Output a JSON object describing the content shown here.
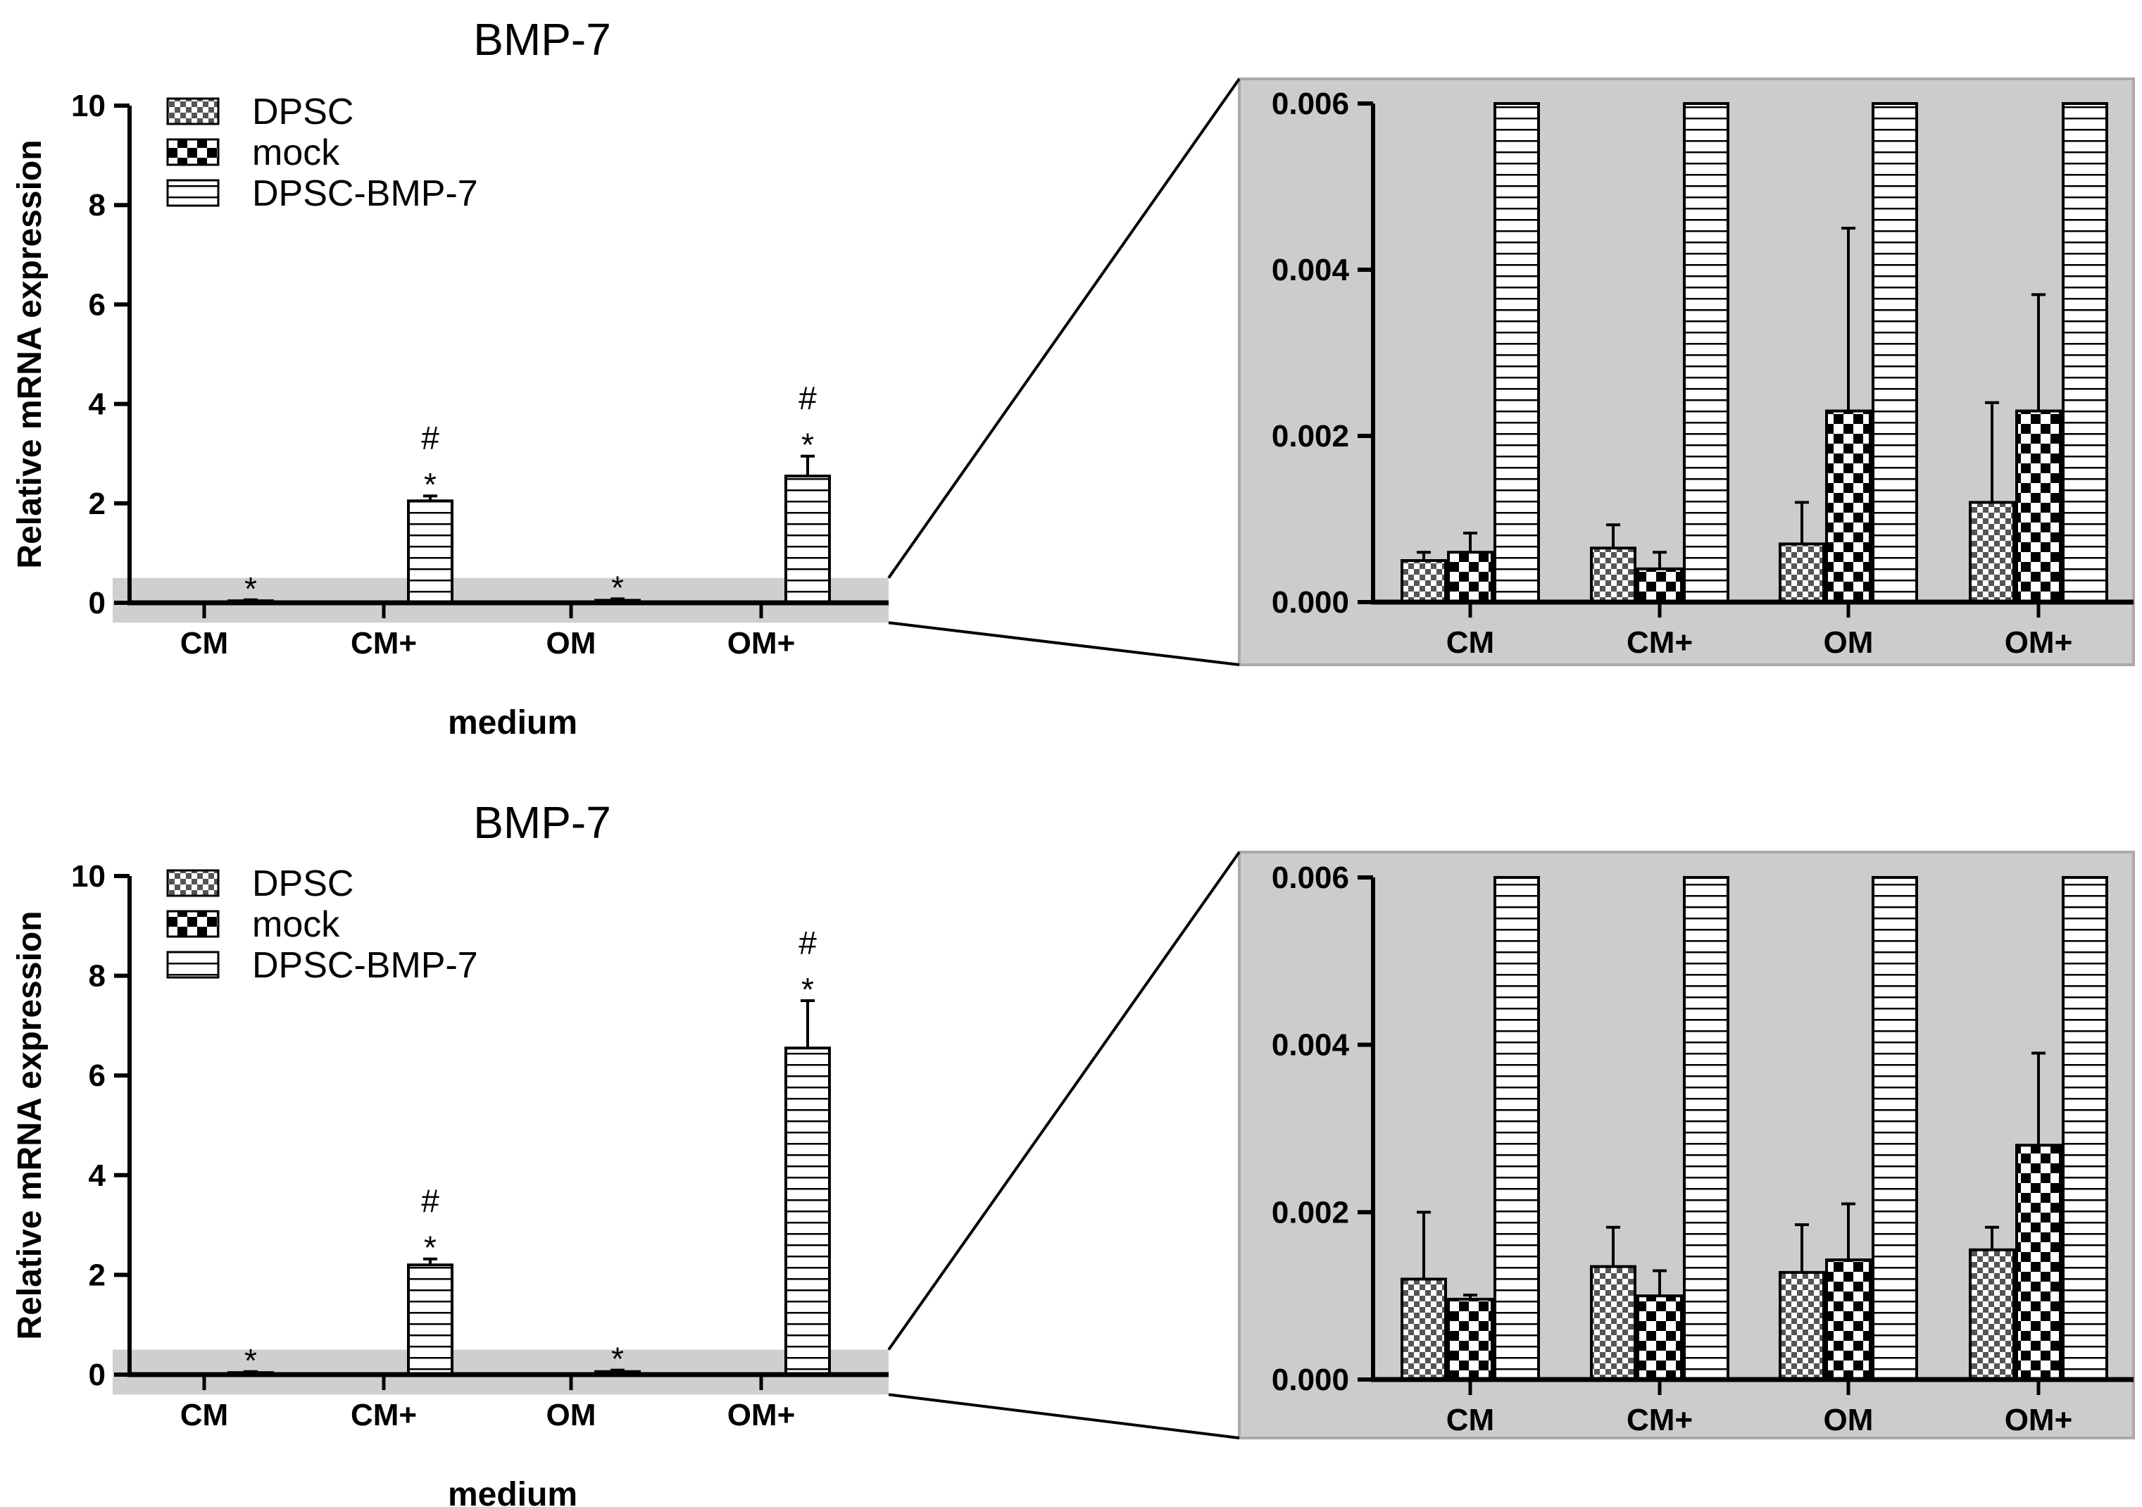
{
  "colors": {
    "inset_bg": "#cccccc",
    "inset_border": "#aaaaaa",
    "highlight": "#cfcfcf",
    "ink": "#000000"
  },
  "series": [
    {
      "name": "DPSC",
      "pattern": "fine-checker"
    },
    {
      "name": "mock",
      "pattern": "coarse-checker"
    },
    {
      "name": "DPSC-BMP-7",
      "pattern": "horizontal-lines"
    }
  ],
  "chart_data": [
    {
      "panel": "top-main",
      "type": "bar",
      "title": "BMP-7",
      "xlabel": "medium",
      "ylabel": "Relative mRNA expression",
      "ylim": [
        0,
        10
      ],
      "yticks": [
        "0",
        "2",
        "4",
        "6",
        "8",
        "10"
      ],
      "categories": [
        "CM",
        "CM+",
        "OM",
        "OM+"
      ],
      "series": [
        {
          "name": "DPSC",
          "values": [
            0.0005,
            0.00065,
            0.0007,
            0.0012
          ],
          "errors": [
            0.0001,
            0.00028,
            0.0005,
            0.0012
          ]
        },
        {
          "name": "mock",
          "values": [
            0.0006,
            0.0004,
            0.0023,
            0.0023
          ],
          "errors": [
            0.00023,
            0.0002,
            0.0022,
            0.0014
          ]
        },
        {
          "name": "DPSC-BMP-7",
          "values": [
            0.04,
            2.05,
            0.05,
            2.55
          ],
          "errors": [
            0.02,
            0.1,
            0.03,
            0.4
          ]
        }
      ],
      "annotations": [
        {
          "category": "CM",
          "series": "DPSC-BMP-7",
          "text": [
            "*"
          ]
        },
        {
          "category": "CM+",
          "series": "DPSC-BMP-7",
          "text": [
            "#",
            "*"
          ]
        },
        {
          "category": "OM",
          "series": "DPSC-BMP-7",
          "text": [
            "*"
          ]
        },
        {
          "category": "OM+",
          "series": "DPSC-BMP-7",
          "text": [
            "#",
            "*"
          ]
        }
      ],
      "legend": [
        "DPSC",
        "mock",
        "DPSC-BMP-7"
      ],
      "highlight_range": [
        -0.4,
        0.5
      ]
    },
    {
      "panel": "top-inset",
      "type": "bar",
      "ylim": [
        0,
        0.006
      ],
      "yticks": [
        "0.000",
        "0.002",
        "0.004",
        "0.006"
      ],
      "categories": [
        "CM",
        "CM+",
        "OM",
        "OM+"
      ],
      "series": [
        {
          "name": "DPSC",
          "values": [
            0.0005,
            0.00065,
            0.0007,
            0.0012
          ],
          "errors": [
            0.0001,
            0.00028,
            0.0005,
            0.0012
          ]
        },
        {
          "name": "mock",
          "values": [
            0.0006,
            0.0004,
            0.0023,
            0.0023
          ],
          "errors": [
            0.00023,
            0.0002,
            0.0022,
            0.0014
          ]
        },
        {
          "name": "DPSC-BMP-7",
          "values": [
            0.04,
            2.05,
            0.05,
            2.55
          ],
          "errors": [
            0.02,
            0.1,
            0.03,
            0.4
          ]
        }
      ]
    },
    {
      "panel": "bottom-main",
      "type": "bar",
      "title": "BMP-7",
      "xlabel": "medium",
      "ylabel": "Relative mRNA expression",
      "ylim": [
        0,
        10
      ],
      "yticks": [
        "0",
        "2",
        "4",
        "6",
        "8",
        "10"
      ],
      "categories": [
        "CM",
        "CM+",
        "OM",
        "OM+"
      ],
      "series": [
        {
          "name": "DPSC",
          "values": [
            0.0012,
            0.00135,
            0.00128,
            0.00155
          ],
          "errors": [
            0.0008,
            0.00047,
            0.00057,
            0.00027
          ]
        },
        {
          "name": "mock",
          "values": [
            0.00096,
            0.001,
            0.00143,
            0.0028
          ],
          "errors": [
            5e-05,
            0.0003,
            0.00067,
            0.0011
          ]
        },
        {
          "name": "DPSC-BMP-7",
          "values": [
            0.04,
            2.2,
            0.06,
            6.55
          ],
          "errors": [
            0.02,
            0.12,
            0.03,
            0.95
          ]
        }
      ],
      "annotations": [
        {
          "category": "CM",
          "series": "DPSC-BMP-7",
          "text": [
            "*"
          ]
        },
        {
          "category": "CM+",
          "series": "DPSC-BMP-7",
          "text": [
            "#",
            "*"
          ]
        },
        {
          "category": "OM",
          "series": "DPSC-BMP-7",
          "text": [
            "*"
          ]
        },
        {
          "category": "OM+",
          "series": "DPSC-BMP-7",
          "text": [
            "#",
            "*"
          ]
        }
      ],
      "legend": [
        "DPSC",
        "mock",
        "DPSC-BMP-7"
      ],
      "highlight_range": [
        -0.4,
        0.5
      ]
    },
    {
      "panel": "bottom-inset",
      "type": "bar",
      "ylim": [
        0,
        0.006
      ],
      "yticks": [
        "0.000",
        "0.002",
        "0.004",
        "0.006"
      ],
      "categories": [
        "CM",
        "CM+",
        "OM",
        "OM+"
      ],
      "series": [
        {
          "name": "DPSC",
          "values": [
            0.0012,
            0.00135,
            0.00128,
            0.00155
          ],
          "errors": [
            0.0008,
            0.00047,
            0.00057,
            0.00027
          ]
        },
        {
          "name": "mock",
          "values": [
            0.00096,
            0.001,
            0.00143,
            0.0028
          ],
          "errors": [
            5e-05,
            0.0003,
            0.00067,
            0.0011
          ]
        },
        {
          "name": "DPSC-BMP-7",
          "values": [
            0.04,
            2.2,
            0.06,
            6.55
          ],
          "errors": [
            0.02,
            0.12,
            0.03,
            0.95
          ]
        }
      ]
    }
  ]
}
